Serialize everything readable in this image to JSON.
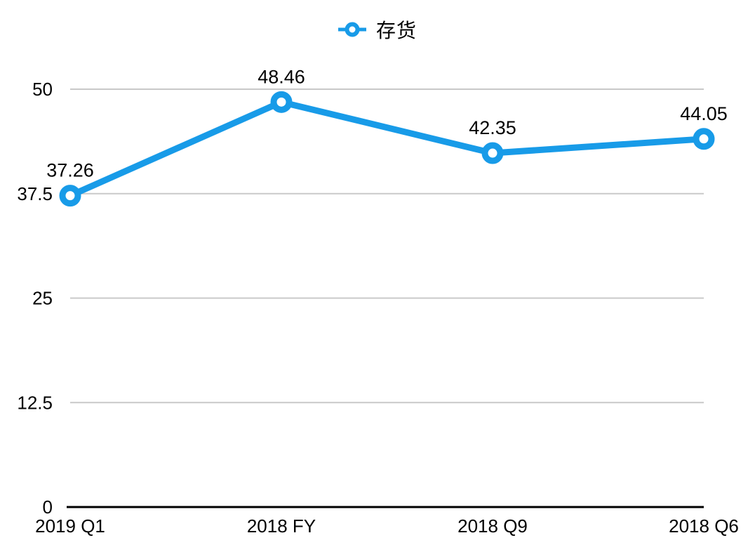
{
  "chart_data": {
    "type": "line",
    "title": "",
    "series_name": "存货",
    "categories": [
      "2019 Q1",
      "2018 FY",
      "2018 Q9",
      "2018 Q6"
    ],
    "values": [
      37.26,
      48.46,
      42.35,
      44.05
    ],
    "point_labels": [
      "37.26",
      "48.46",
      "42.35",
      "44.05"
    ],
    "ylim": [
      0,
      50
    ],
    "yticks": [
      0,
      12.5,
      25,
      37.5,
      50
    ],
    "ytick_labels": [
      "0",
      "12.5",
      "25",
      "37.5",
      "50"
    ],
    "xlabel": "",
    "ylabel": "",
    "legend_position": "top-center",
    "grid": "horizontal",
    "marker_style": "ring",
    "line_color": "#189BE8",
    "grid_color": "#C9C9C9",
    "axis_color": "#000000",
    "text_color": "#000000",
    "background_color": "#FFFFFF"
  }
}
